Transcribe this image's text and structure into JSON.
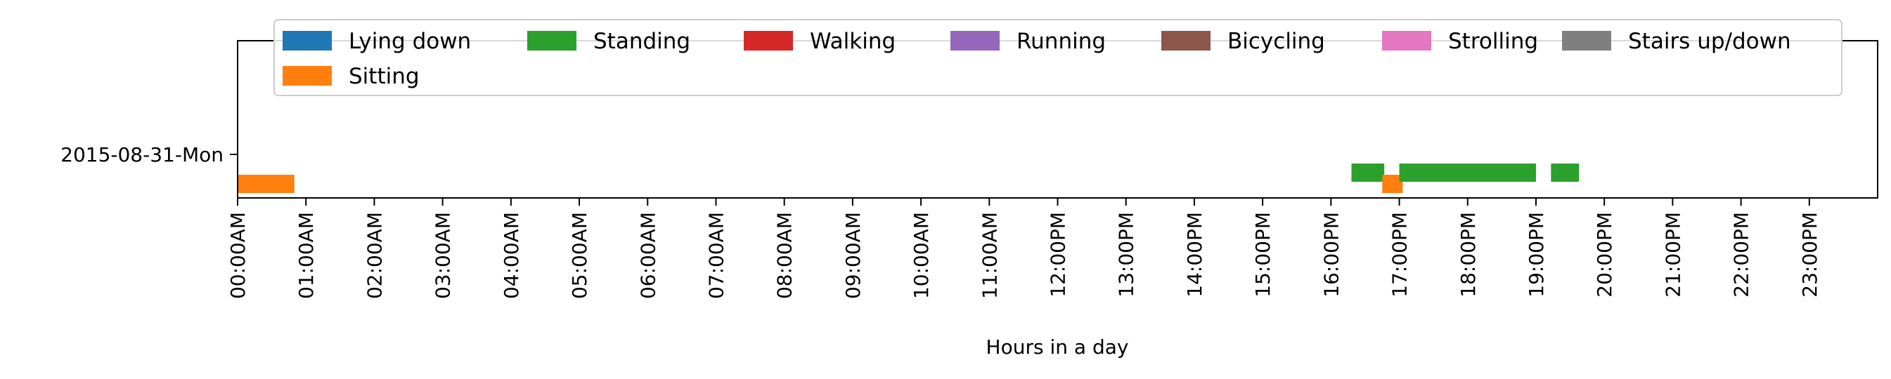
{
  "chart_data": {
    "type": "timeline",
    "xlabel": "Hours in a day",
    "xlim": [
      0,
      24
    ],
    "x_ticks": [
      "00:00AM",
      "01:00AM",
      "02:00AM",
      "03:00AM",
      "04:00AM",
      "05:00AM",
      "06:00AM",
      "07:00AM",
      "08:00AM",
      "09:00AM",
      "10:00AM",
      "11:00AM",
      "12:00PM",
      "13:00PM",
      "14:00PM",
      "15:00PM",
      "16:00PM",
      "17:00PM",
      "18:00PM",
      "19:00PM",
      "20:00PM",
      "21:00PM",
      "22:00PM",
      "23:00PM"
    ],
    "y_categories": [
      "2015-08-31-Mon"
    ],
    "legend_position": "top",
    "legend": [
      {
        "name": "Lying down",
        "color": "#1f77b4"
      },
      {
        "name": "Sitting",
        "color": "#ff7f0e"
      },
      {
        "name": "Standing",
        "color": "#2ca02c"
      },
      {
        "name": "Walking",
        "color": "#d62728"
      },
      {
        "name": "Running",
        "color": "#9467bd"
      },
      {
        "name": "Bicycling",
        "color": "#8c564b"
      },
      {
        "name": "Strolling",
        "color": "#e377c2"
      },
      {
        "name": "Stairs up/down",
        "color": "#7f7f7f"
      }
    ],
    "segments": [
      {
        "day": "2015-08-31-Mon",
        "activity": "Sitting",
        "start": 0.0,
        "end": 0.83
      },
      {
        "day": "2015-08-31-Mon",
        "activity": "Standing",
        "start": 16.3,
        "end": 16.78
      },
      {
        "day": "2015-08-31-Mon",
        "activity": "Sitting",
        "start": 16.75,
        "end": 17.05
      },
      {
        "day": "2015-08-31-Mon",
        "activity": "Standing",
        "start": 17.0,
        "end": 19.0
      },
      {
        "day": "2015-08-31-Mon",
        "activity": "Standing",
        "start": 19.22,
        "end": 19.63
      }
    ]
  }
}
